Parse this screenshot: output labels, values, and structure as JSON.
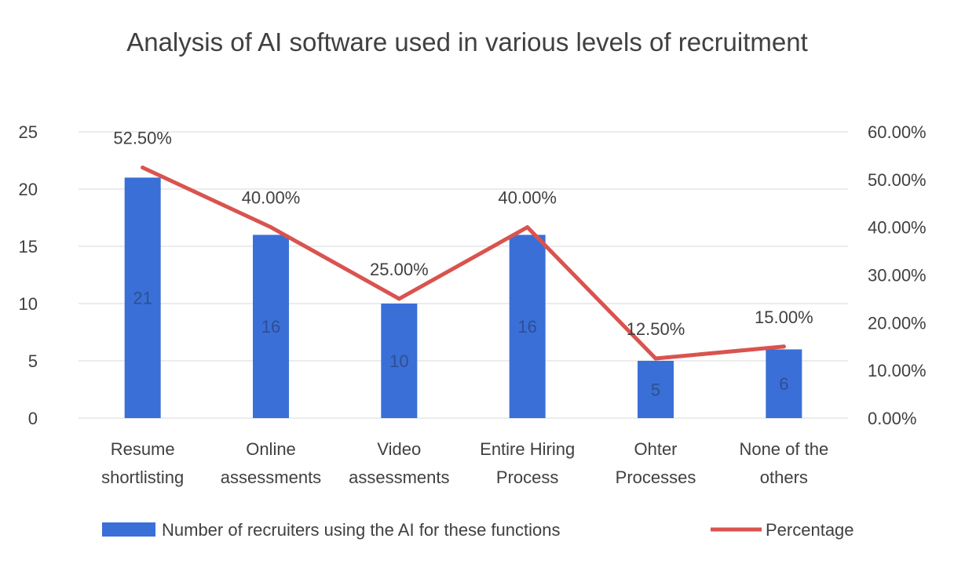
{
  "chart_data": {
    "type": "bar",
    "title": "Analysis of AI software used in various levels of recruitment",
    "categories": [
      [
        "Resume",
        "shortlisting"
      ],
      [
        "Online",
        "assessments"
      ],
      [
        "Video",
        "assessments"
      ],
      [
        "Entire Hiring",
        "Process"
      ],
      [
        "Ohter",
        "Processes"
      ],
      [
        "None of the",
        "others"
      ]
    ],
    "series": [
      {
        "name": "Number of recruiters using the AI for these functions",
        "type": "bar",
        "axis": "left",
        "color": "#3a6fd8",
        "values": [
          21,
          16,
          10,
          16,
          5,
          6
        ],
        "labels": [
          "21",
          "16",
          "10",
          "16",
          "5",
          "6"
        ]
      },
      {
        "name": "Percentage",
        "type": "line",
        "axis": "right",
        "color": "#d9534f",
        "values": [
          52.5,
          40.0,
          25.0,
          40.0,
          12.5,
          15.0
        ],
        "labels": [
          "52.50%",
          "40.00%",
          "25.00%",
          "40.00%",
          "12.50%",
          "15.00%"
        ]
      }
    ],
    "y_left": {
      "min": 0,
      "max": 25,
      "ticks": [
        "0",
        "5",
        "10",
        "15",
        "20",
        "25"
      ]
    },
    "y_right": {
      "min": 0,
      "max": 60,
      "ticks": [
        "0.00%",
        "10.00%",
        "20.00%",
        "30.00%",
        "40.00%",
        "50.00%",
        "60.00%"
      ]
    },
    "grid": true,
    "legend_position": "bottom"
  }
}
